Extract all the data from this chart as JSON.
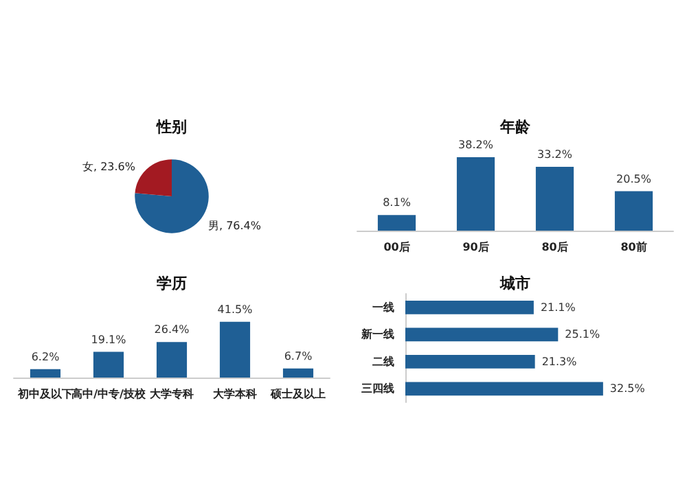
{
  "chart_data": [
    {
      "type": "pie",
      "title": "性别",
      "categories": [
        "男",
        "女"
      ],
      "values": [
        76.4,
        23.6
      ],
      "colors": [
        "#1f5f95",
        "#a31a22"
      ],
      "value_labels": [
        "76.4%",
        "23.6%"
      ],
      "legend": false
    },
    {
      "type": "bar",
      "title": "年龄",
      "categories": [
        "00后",
        "90后",
        "80后",
        "80前"
      ],
      "values": [
        8.1,
        38.2,
        33.2,
        20.5
      ],
      "color": "#1f5f95",
      "value_labels": [
        "8.1%",
        "38.2%",
        "33.2%",
        "20.5%"
      ],
      "tick_labels": "x"
    },
    {
      "type": "bar",
      "title": "学历",
      "categories": [
        "初中及以下",
        "高中/中专/技校",
        "大学专科",
        "大学本科",
        "硕士及以上"
      ],
      "values": [
        6.2,
        19.1,
        26.4,
        41.5,
        6.7
      ],
      "color": "#1f5f95",
      "value_labels": [
        "6.2%",
        "19.1%",
        "26.4%",
        "41.5%",
        "6.7%"
      ],
      "tick_labels": "x"
    },
    {
      "type": "bar",
      "title": "城市",
      "orientation": "horizontal",
      "categories": [
        "一线",
        "新一线",
        "二线",
        "三四线"
      ],
      "values": [
        21.1,
        25.1,
        21.3,
        32.5
      ],
      "color": "#1f5f95",
      "value_labels": [
        "21.1%",
        "25.1%",
        "21.3%",
        "32.5%"
      ],
      "tick_labels": "y"
    }
  ]
}
